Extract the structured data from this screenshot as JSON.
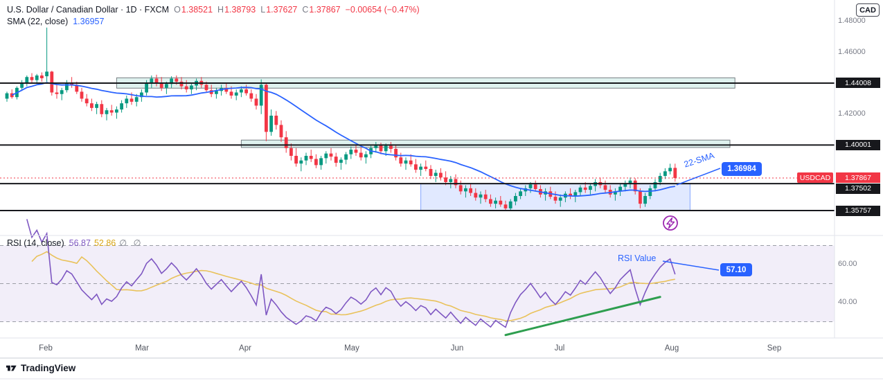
{
  "header": {
    "symbol_title": "U.S. Dollar / Canadian Dollar · 1D · FXCM",
    "ohlc": {
      "o_label": "O",
      "o": "1.38521",
      "h_label": "H",
      "h": "1.38793",
      "l_label": "L",
      "l": "1.37627",
      "c_label": "C",
      "c": "1.37867",
      "change": "−0.00654 (−0.47%)"
    },
    "sma_legend": {
      "name": "SMA (22, close)",
      "value": "1.36957"
    }
  },
  "rsi_legend": {
    "name": "RSI (14, close)",
    "value": "56.87",
    "ma_value": "52.86",
    "hidden": "∅ ∅"
  },
  "annotations": {
    "sma_label": "22-SMA",
    "sma_price": "1.36984",
    "rsi_label": "RSI Value",
    "rsi_value": "57.10"
  },
  "price_axis": {
    "currency": "CAD",
    "ticks": [
      {
        "label": "1.48000",
        "price": 1.48
      },
      {
        "label": "1.46000",
        "price": 1.46
      },
      {
        "label": "1.42000",
        "price": 1.42
      }
    ],
    "level_badges": [
      {
        "label": "1.44008",
        "price": 1.44008
      },
      {
        "label": "1.40001",
        "price": 1.40001
      },
      {
        "label": "1.37502",
        "price": 1.37502
      },
      {
        "label": "1.35757",
        "price": 1.35757
      }
    ],
    "last_price": {
      "symbol": "USDCAD",
      "value": "1.37867",
      "price": 1.37867
    }
  },
  "rsi_axis": {
    "ticks": [
      {
        "label": "60.00",
        "value": 60
      },
      {
        "label": "40.00",
        "value": 40
      }
    ]
  },
  "time_axis": {
    "labels": [
      "Feb",
      "Mar",
      "Apr",
      "May",
      "Jun",
      "Jul",
      "Aug",
      "Sep"
    ]
  },
  "footer": {
    "brand": "TradingView"
  },
  "colors": {
    "up": "#089981",
    "down": "#F23645",
    "sma": "#2962FF",
    "level": "#17181C",
    "rsi": "#7E57C2",
    "rsi_ma": "#E9C25B",
    "rsi_band_fill": "rgba(126,87,194,0.10)",
    "band_line": "#9B9EA6",
    "trend": "#2E9E4F",
    "event": "#9C27B0",
    "separator": "#E0E3EB",
    "separator_dark": "#C9CCD4",
    "text": "#131722",
    "muted": "#787B86",
    "accent": "#2962FF"
  },
  "chart_data": {
    "type": "candlestick",
    "title": "USDCAD 1D FXCM",
    "symbol": "USDCAD",
    "interval": "1D",
    "exchange": "FXCM",
    "ylim": [
      1.3437,
      1.4813
    ],
    "current_price": 1.37867,
    "levels": [
      1.44008,
      1.40001,
      1.37502,
      1.35757
    ],
    "overlays": {
      "sma_period": 22,
      "sma_current": 1.36957
    },
    "indicator": {
      "type": "rsi",
      "period": 14,
      "ma_period": 14,
      "bands": [
        70,
        50,
        30
      ],
      "current": 56.87,
      "ma_current": 52.86
    },
    "rsi_trendline": {
      "from": {
        "index": 100,
        "value": 23
      },
      "to": {
        "index": 131,
        "value": 43
      }
    },
    "zones": [
      {
        "from_index": 22,
        "to_index": 146,
        "top": 1.4435,
        "bottom": 1.4368,
        "fill": "rgba(8,153,129,0.13)",
        "stroke": "rgba(19,23,34,0.55)"
      },
      {
        "from_index": 47,
        "to_index": 145,
        "top": 1.4032,
        "bottom": 1.3984,
        "fill": "rgba(8,153,129,0.13)",
        "stroke": "rgba(19,23,34,0.55)"
      },
      {
        "from_index": 83,
        "to_index": 137,
        "top": 1.37502,
        "bottom": 1.35757,
        "fill": "rgba(41,98,255,0.14)",
        "stroke": "rgba(41,98,255,0.55)"
      }
    ],
    "ohlc": [
      [
        1.43,
        1.4345,
        1.428,
        1.4335
      ],
      [
        1.4335,
        1.436,
        1.43,
        1.431
      ],
      [
        1.431,
        1.438,
        1.4295,
        1.437
      ],
      [
        1.437,
        1.442,
        1.435,
        1.4405
      ],
      [
        1.4405,
        1.445,
        1.438,
        1.444
      ],
      [
        1.444,
        1.4465,
        1.44,
        1.442
      ],
      [
        1.442,
        1.446,
        1.4395,
        1.445
      ],
      [
        1.445,
        1.447,
        1.441,
        1.4432
      ],
      [
        1.4445,
        1.476,
        1.441,
        1.4475
      ],
      [
        1.4475,
        1.448,
        1.432,
        1.434
      ],
      [
        1.434,
        1.439,
        1.43,
        1.433
      ],
      [
        1.433,
        1.437,
        1.429,
        1.4355
      ],
      [
        1.4355,
        1.442,
        1.434,
        1.44
      ],
      [
        1.44,
        1.444,
        1.437,
        1.4385
      ],
      [
        1.4385,
        1.441,
        1.433,
        1.4345
      ],
      [
        1.4345,
        1.437,
        1.428,
        1.43
      ],
      [
        1.43,
        1.433,
        1.425,
        1.427
      ],
      [
        1.427,
        1.43,
        1.422,
        1.424
      ],
      [
        1.424,
        1.428,
        1.42,
        1.4265
      ],
      [
        1.4265,
        1.429,
        1.418,
        1.42
      ],
      [
        1.42,
        1.424,
        1.416,
        1.4225
      ],
      [
        1.4225,
        1.426,
        1.419,
        1.421
      ],
      [
        1.421,
        1.425,
        1.417,
        1.423
      ],
      [
        1.423,
        1.429,
        1.421,
        1.427
      ],
      [
        1.427,
        1.432,
        1.424,
        1.43
      ],
      [
        1.43,
        1.434,
        1.426,
        1.428
      ],
      [
        1.428,
        1.433,
        1.425,
        1.431
      ],
      [
        1.431,
        1.436,
        1.428,
        1.434
      ],
      [
        1.434,
        1.442,
        1.432,
        1.44
      ],
      [
        1.44,
        1.445,
        1.437,
        1.443
      ],
      [
        1.443,
        1.4455,
        1.438,
        1.4405
      ],
      [
        1.4405,
        1.444,
        1.435,
        1.437
      ],
      [
        1.437,
        1.441,
        1.433,
        1.4395
      ],
      [
        1.4395,
        1.4445,
        1.437,
        1.443
      ],
      [
        1.443,
        1.445,
        1.439,
        1.441
      ],
      [
        1.441,
        1.444,
        1.436,
        1.438
      ],
      [
        1.438,
        1.442,
        1.434,
        1.436
      ],
      [
        1.436,
        1.44,
        1.433,
        1.4385
      ],
      [
        1.4385,
        1.443,
        1.4355,
        1.4415
      ],
      [
        1.4415,
        1.444,
        1.437,
        1.439
      ],
      [
        1.439,
        1.441,
        1.434,
        1.4355
      ],
      [
        1.4355,
        1.439,
        1.431,
        1.433
      ],
      [
        1.433,
        1.437,
        1.43,
        1.435
      ],
      [
        1.435,
        1.439,
        1.432,
        1.437
      ],
      [
        1.437,
        1.44,
        1.433,
        1.4345
      ],
      [
        1.4345,
        1.438,
        1.43,
        1.432
      ],
      [
        1.432,
        1.436,
        1.429,
        1.434
      ],
      [
        1.434,
        1.438,
        1.431,
        1.436
      ],
      [
        1.436,
        1.439,
        1.432,
        1.4335
      ],
      [
        1.4335,
        1.436,
        1.428,
        1.43
      ],
      [
        1.43,
        1.433,
        1.423,
        1.4255
      ],
      [
        1.4255,
        1.4425,
        1.42,
        1.439
      ],
      [
        1.439,
        1.44,
        1.4025,
        1.4085
      ],
      [
        1.4085,
        1.423,
        1.406,
        1.419
      ],
      [
        1.419,
        1.422,
        1.41,
        1.413
      ],
      [
        1.413,
        1.416,
        1.402,
        1.405
      ],
      [
        1.405,
        1.409,
        1.395,
        1.398
      ],
      [
        1.398,
        1.401,
        1.39,
        1.393
      ],
      [
        1.393,
        1.398,
        1.386,
        1.388
      ],
      [
        1.388,
        1.392,
        1.383,
        1.39
      ],
      [
        1.39,
        1.395,
        1.387,
        1.393
      ],
      [
        1.393,
        1.397,
        1.389,
        1.391
      ],
      [
        1.391,
        1.394,
        1.385,
        1.387
      ],
      [
        1.387,
        1.393,
        1.384,
        1.3915
      ],
      [
        1.3915,
        1.396,
        1.388,
        1.3945
      ],
      [
        1.3945,
        1.398,
        1.39,
        1.3925
      ],
      [
        1.3925,
        1.395,
        1.386,
        1.3885
      ],
      [
        1.3885,
        1.392,
        1.384,
        1.3905
      ],
      [
        1.3905,
        1.3955,
        1.3875,
        1.394
      ],
      [
        1.394,
        1.399,
        1.391,
        1.397
      ],
      [
        1.397,
        1.4,
        1.393,
        1.395
      ],
      [
        1.395,
        1.3985,
        1.39,
        1.392
      ],
      [
        1.392,
        1.396,
        1.388,
        1.394
      ],
      [
        1.394,
        1.3995,
        1.3915,
        1.398
      ],
      [
        1.398,
        1.402,
        1.395,
        1.4
      ],
      [
        1.4,
        1.4015,
        1.394,
        1.396
      ],
      [
        1.396,
        1.401,
        1.393,
        1.3995
      ],
      [
        1.3995,
        1.402,
        1.395,
        1.3975
      ],
      [
        1.3975,
        1.4,
        1.39,
        1.392
      ],
      [
        1.392,
        1.395,
        1.386,
        1.388
      ],
      [
        1.388,
        1.392,
        1.384,
        1.39
      ],
      [
        1.39,
        1.394,
        1.386,
        1.3875
      ],
      [
        1.3875,
        1.391,
        1.382,
        1.384
      ],
      [
        1.384,
        1.388,
        1.38,
        1.386
      ],
      [
        1.386,
        1.39,
        1.383,
        1.3845
      ],
      [
        1.3845,
        1.387,
        1.378,
        1.38
      ],
      [
        1.38,
        1.384,
        1.376,
        1.382
      ],
      [
        1.382,
        1.385,
        1.377,
        1.379
      ],
      [
        1.379,
        1.383,
        1.374,
        1.376
      ],
      [
        1.376,
        1.38,
        1.372,
        1.378
      ],
      [
        1.378,
        1.381,
        1.372,
        1.374
      ],
      [
        1.374,
        1.377,
        1.368,
        1.37
      ],
      [
        1.37,
        1.374,
        1.366,
        1.372
      ],
      [
        1.372,
        1.375,
        1.367,
        1.369
      ],
      [
        1.369,
        1.372,
        1.364,
        1.366
      ],
      [
        1.366,
        1.37,
        1.362,
        1.368
      ],
      [
        1.368,
        1.371,
        1.363,
        1.365
      ],
      [
        1.365,
        1.368,
        1.36,
        1.362
      ],
      [
        1.362,
        1.366,
        1.359,
        1.364
      ],
      [
        1.364,
        1.367,
        1.36,
        1.3615
      ],
      [
        1.3615,
        1.364,
        1.3576,
        1.359
      ],
      [
        1.359,
        1.365,
        1.358,
        1.3635
      ],
      [
        1.3635,
        1.369,
        1.361,
        1.367
      ],
      [
        1.367,
        1.372,
        1.365,
        1.37
      ],
      [
        1.37,
        1.374,
        1.367,
        1.372
      ],
      [
        1.372,
        1.376,
        1.369,
        1.3745
      ],
      [
        1.3745,
        1.377,
        1.37,
        1.3715
      ],
      [
        1.3715,
        1.374,
        1.366,
        1.368
      ],
      [
        1.368,
        1.372,
        1.364,
        1.37
      ],
      [
        1.37,
        1.373,
        1.365,
        1.3665
      ],
      [
        1.3665,
        1.37,
        1.362,
        1.364
      ],
      [
        1.364,
        1.368,
        1.36,
        1.366
      ],
      [
        1.366,
        1.37,
        1.363,
        1.3685
      ],
      [
        1.3685,
        1.372,
        1.365,
        1.367
      ],
      [
        1.367,
        1.371,
        1.363,
        1.3695
      ],
      [
        1.3695,
        1.374,
        1.367,
        1.3725
      ],
      [
        1.3725,
        1.376,
        1.369,
        1.371
      ],
      [
        1.371,
        1.375,
        1.368,
        1.3735
      ],
      [
        1.3735,
        1.378,
        1.37,
        1.376
      ],
      [
        1.376,
        1.379,
        1.372,
        1.374
      ],
      [
        1.374,
        1.377,
        1.369,
        1.371
      ],
      [
        1.371,
        1.374,
        1.366,
        1.368
      ],
      [
        1.368,
        1.372,
        1.364,
        1.37
      ],
      [
        1.37,
        1.375,
        1.367,
        1.373
      ],
      [
        1.373,
        1.377,
        1.37,
        1.375
      ],
      [
        1.375,
        1.379,
        1.372,
        1.377
      ],
      [
        1.377,
        1.3785,
        1.368,
        1.37
      ],
      [
        1.37,
        1.372,
        1.359,
        1.362
      ],
      [
        1.362,
        1.369,
        1.36,
        1.367
      ],
      [
        1.367,
        1.374,
        1.365,
        1.372
      ],
      [
        1.372,
        1.378,
        1.37,
        1.376
      ],
      [
        1.376,
        1.382,
        1.374,
        1.38
      ],
      [
        1.38,
        1.385,
        1.378,
        1.383
      ],
      [
        1.383,
        1.3879,
        1.381,
        1.3852
      ],
      [
        1.38521,
        1.38793,
        1.37627,
        1.37867
      ]
    ]
  }
}
